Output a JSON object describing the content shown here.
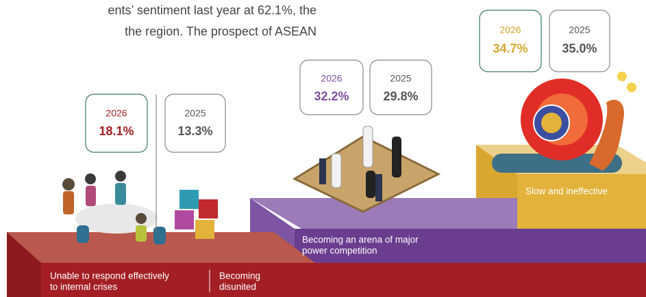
{
  "intro": [
    "ents’ sentiment last year at 62.1%, the",
    "the region. The prospect of ASEAN"
  ],
  "steps": [
    {
      "captions": [
        [
          "Unable to respond effectively",
          "to internal crises"
        ],
        [
          "Becoming",
          "disunited"
        ]
      ],
      "figures": [
        {
          "year": "2026",
          "value": "18.1%"
        },
        {
          "year": "2025",
          "value": "13.3%"
        }
      ]
    },
    {
      "captions": [
        [
          "Becoming an arena of major",
          "power competition"
        ]
      ],
      "figures": [
        {
          "year": "2026",
          "value": "32.2%"
        },
        {
          "year": "2025",
          "value": "29.8%"
        }
      ]
    },
    {
      "captions": [
        [
          "Slow and ineffective"
        ]
      ],
      "figures": [
        {
          "year": "2026",
          "value": "34.7%"
        },
        {
          "year": "2025",
          "value": "35.0%"
        }
      ]
    }
  ]
}
